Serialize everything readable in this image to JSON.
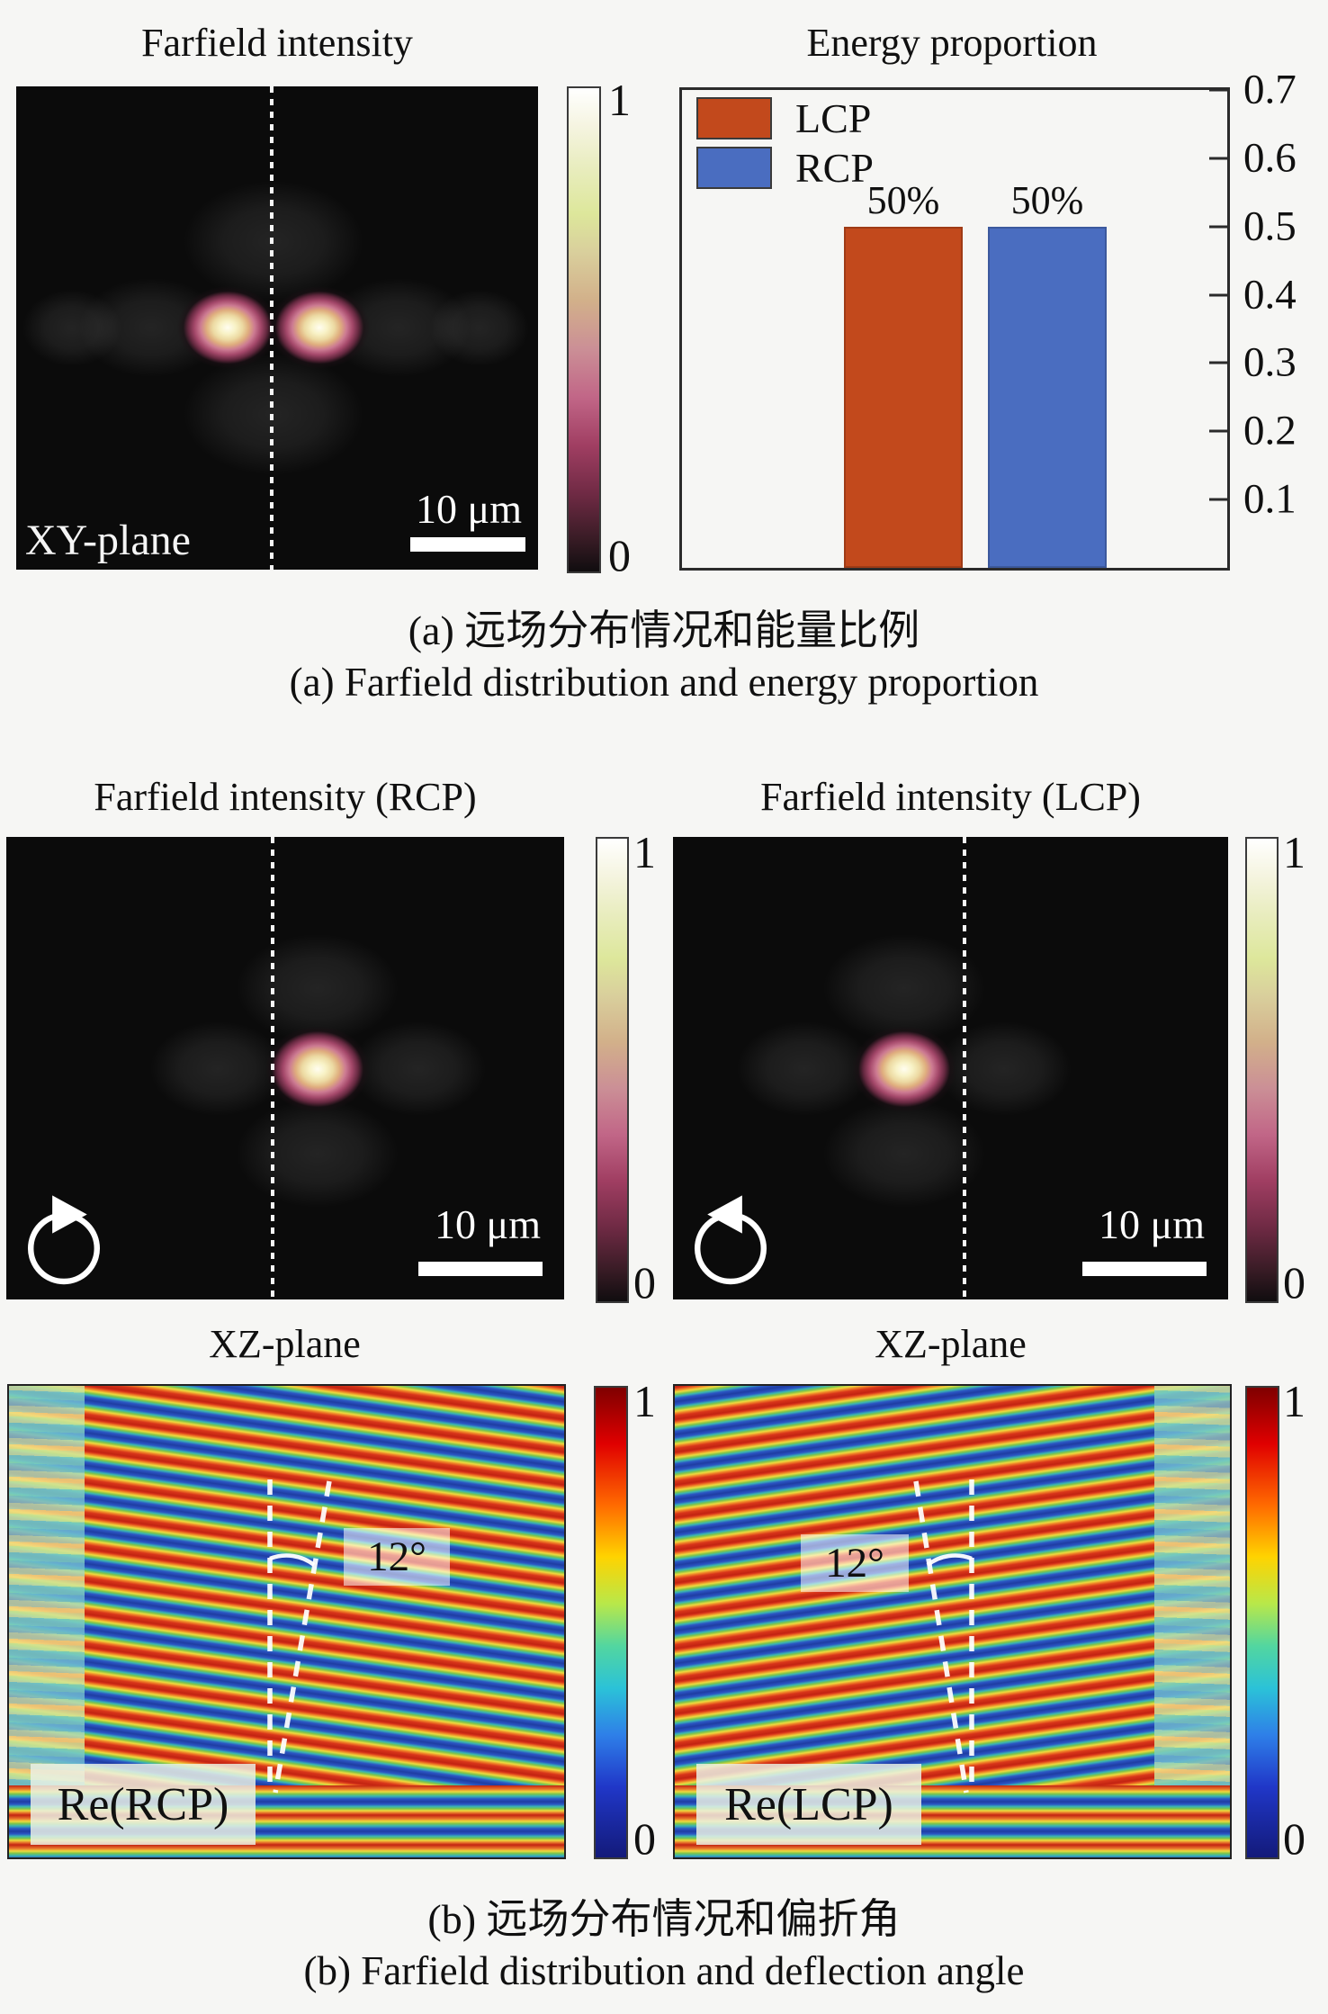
{
  "figure": {
    "panel_a": {
      "farfield": {
        "title": "Farfield intensity",
        "plane_label": "XY-plane",
        "scalebar": "10 μm",
        "cb_max": "1",
        "cb_min": "0"
      },
      "energy": {
        "title": "Energy proportion"
      },
      "caption_zh": "(a) 远场分布情况和能量比例",
      "caption_en": "(a) Farfield distribution and energy proportion"
    },
    "panel_b": {
      "rcp": {
        "title": "Farfield intensity (RCP)",
        "scalebar": "10 μm",
        "cb_max": "1",
        "cb_min": "0"
      },
      "lcp": {
        "title": "Farfield intensity (LCP)",
        "scalebar": "10 μm",
        "cb_max": "1",
        "cb_min": "0"
      },
      "xz_rcp": {
        "title": "XZ-plane",
        "angle": "12°",
        "field_label": "Re(RCP)",
        "cb_max": "1",
        "cb_min": "0"
      },
      "xz_lcp": {
        "title": "XZ-plane",
        "angle": "12°",
        "field_label": "Re(LCP)",
        "cb_max": "1",
        "cb_min": "0"
      },
      "caption_zh": "(b) 远场分布情况和偏折角",
      "caption_en": "(b) Farfield distribution and deflection angle"
    }
  },
  "chart_data": [
    {
      "type": "bar",
      "title": "Energy proportion",
      "categories": [
        "LCP",
        "RCP"
      ],
      "values": [
        0.5,
        0.5
      ],
      "value_labels": [
        "50%",
        "50%"
      ],
      "colors": [
        "#c2491c",
        "#4a6dc0"
      ],
      "ylim": [
        0,
        0.7
      ],
      "yticks": [
        0.1,
        0.2,
        0.3,
        0.4,
        0.5,
        0.6,
        0.7
      ],
      "ytick_labels": [
        "0.1",
        "0.2",
        "0.3",
        "0.4",
        "0.5",
        "0.6",
        "0.7"
      ],
      "y_axis_side": "right",
      "legend": [
        "LCP",
        "RCP"
      ],
      "legend_position": "top-left",
      "grid": false
    },
    {
      "type": "heatmap",
      "title": "Farfield intensity",
      "plane": "XY-plane",
      "colorbar_range": [
        0,
        1
      ],
      "scale_bar": "10 μm",
      "description": "Two bright focal spots symmetric about a dotted vertical center line on black background"
    },
    {
      "type": "heatmap",
      "title": "Farfield intensity (RCP)",
      "colorbar_range": [
        0,
        1
      ],
      "scale_bar": "10 μm",
      "description": "Single focal spot just right of dotted center line; clockwise circular-polarization arrow"
    },
    {
      "type": "heatmap",
      "title": "Farfield intensity (LCP)",
      "colorbar_range": [
        0,
        1
      ],
      "scale_bar": "10 μm",
      "description": "Single focal spot just left of dotted center line; counterclockwise circular-polarization arrow"
    },
    {
      "type": "heatmap",
      "title": "XZ-plane",
      "field_label": "Re(RCP)",
      "deflection_angle": "12°",
      "colorbar_range": [
        0,
        1
      ],
      "description": "Re(RCP) wavefronts tilted, beam deflected 12° right of vertical dashed reference"
    },
    {
      "type": "heatmap",
      "title": "XZ-plane",
      "field_label": "Re(LCP)",
      "deflection_angle": "12°",
      "colorbar_range": [
        0,
        1
      ],
      "description": "Re(LCP) wavefronts tilted, beam deflected 12° left of vertical dashed reference"
    }
  ]
}
